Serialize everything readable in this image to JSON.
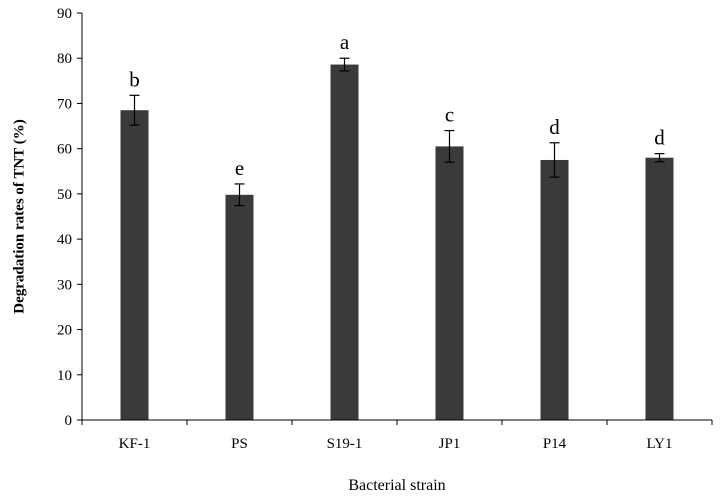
{
  "chart_data": {
    "type": "bar",
    "xlabel": "Bacterial strain",
    "ylabel": "Degradation rates of TNT (%)",
    "ylim": [
      0,
      90
    ],
    "yticks": [
      0,
      10,
      20,
      30,
      40,
      50,
      60,
      70,
      80,
      90
    ],
    "grid": false,
    "legend": "none",
    "bar_color": "#3a3a3a",
    "categories": [
      "KF-1",
      "PS",
      "S19-1",
      "JP1",
      "P14",
      "LY1"
    ],
    "values": [
      68.5,
      49.8,
      78.6,
      60.5,
      57.5,
      58.0
    ],
    "error": [
      3.3,
      2.4,
      1.4,
      3.5,
      3.8,
      0.9
    ],
    "significance": [
      "b",
      "e",
      "a",
      "c",
      "d",
      "d"
    ]
  }
}
